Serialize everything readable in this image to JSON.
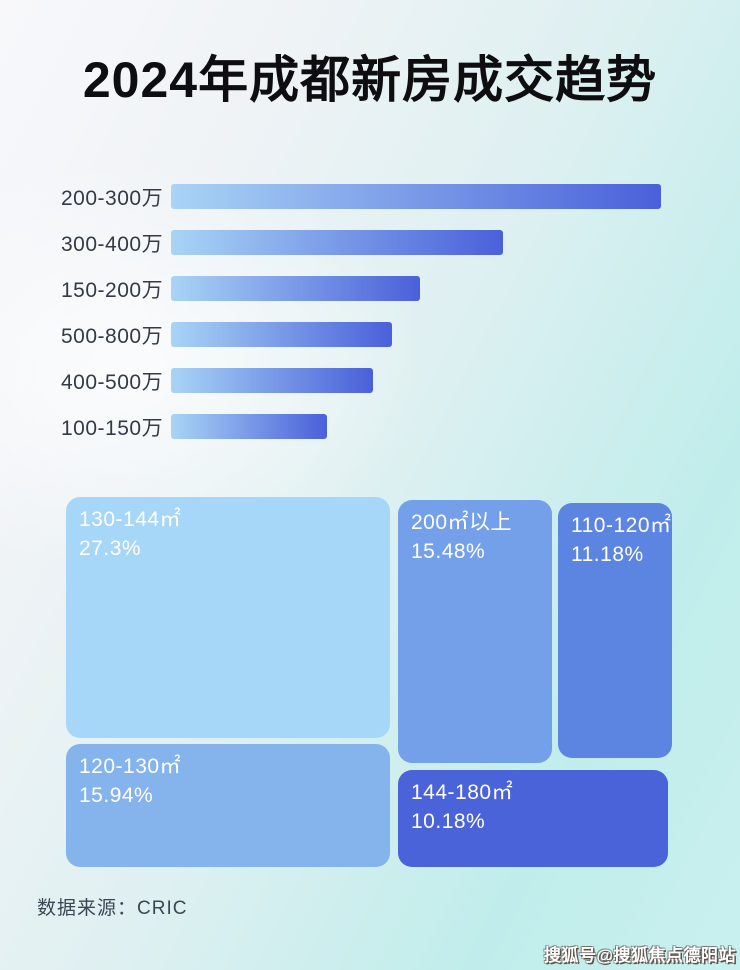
{
  "page": {
    "title": "2024年成都新房成交趋势",
    "source_note": "数据来源：CRIC",
    "watermark": "搜狐号@搜狐焦点德阳站"
  },
  "colors": {
    "title_text": "#0e0e10",
    "bar_label_text": "#343b46",
    "bar_gradient_start": "#a9d4f5",
    "bar_gradient_end": "#4a60da",
    "tile_text": "#ffffff",
    "background_top_left": "#f8f8fb",
    "background_right": "#c0edeb"
  },
  "chart_data": [
    {
      "type": "bar",
      "orientation": "horizontal",
      "title": "2024年成都新房成交趋势",
      "categories": [
        "200-300万",
        "300-400万",
        "150-200万",
        "500-800万",
        "400-500万",
        "100-150万"
      ],
      "values": [
        100,
        67.8,
        50.8,
        45.1,
        41.2,
        31.8
      ],
      "value_note": "bars carry no numeric labels in the image; values are bar lengths as % of the longest bar, estimated from pixels",
      "xlabel": "",
      "ylabel": "",
      "grid": false,
      "legend": false,
      "bar_gradient": [
        "#a9d4f5",
        "#4a60da"
      ]
    },
    {
      "type": "treemap",
      "title": "",
      "legend": false,
      "items": [
        {
          "label": "130-144㎡",
          "value_pct": 27.3,
          "value_text": "27.3%",
          "color": "#a7d7f8"
        },
        {
          "label": "200㎡以上",
          "value_pct": 15.48,
          "value_text": "15.48%",
          "color": "#73a0e9"
        },
        {
          "label": "110-120㎡",
          "value_pct": 11.18,
          "value_text": "11.18%",
          "color": "#5c85e1"
        },
        {
          "label": "120-130㎡",
          "value_pct": 15.94,
          "value_text": "15.94%",
          "color": "#85b3ec"
        },
        {
          "label": "144-180㎡",
          "value_pct": 10.18,
          "value_text": "10.18%",
          "color": "#4a63d9"
        }
      ]
    }
  ]
}
